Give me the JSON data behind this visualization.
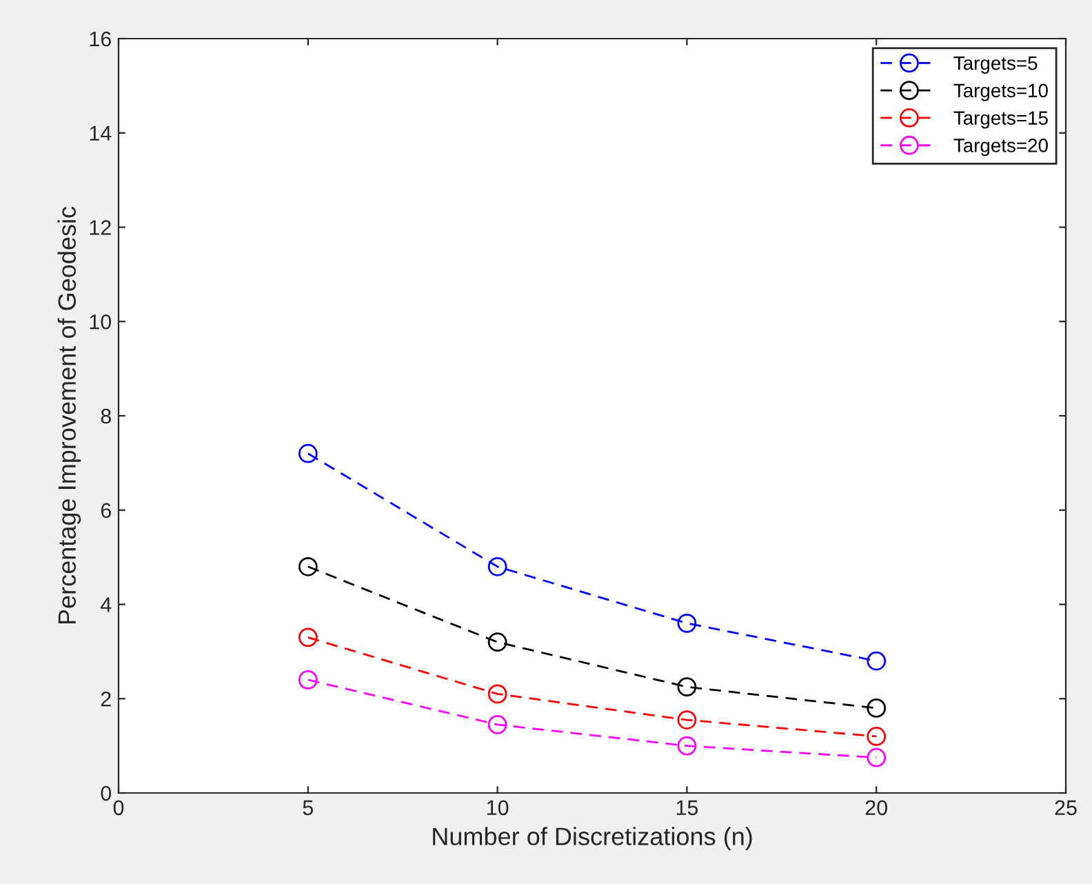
{
  "chart_data": {
    "type": "line",
    "xlabel": "Number of Discretizations (n)",
    "ylabel": "Percentage Improvement of Geodesic",
    "x": [
      5,
      10,
      15,
      20
    ],
    "series": [
      {
        "name": "Targets=5",
        "color": "#0000ff",
        "values": [
          7.2,
          4.8,
          3.6,
          2.8
        ]
      },
      {
        "name": "Targets=10",
        "color": "#000000",
        "values": [
          4.8,
          3.2,
          2.25,
          1.8
        ]
      },
      {
        "name": "Targets=15",
        "color": "#ff0000",
        "values": [
          3.3,
          2.1,
          1.55,
          1.2
        ]
      },
      {
        "name": "Targets=20",
        "color": "#ff00ff",
        "values": [
          2.4,
          1.45,
          1.0,
          0.75
        ]
      }
    ],
    "xlim": [
      0,
      25
    ],
    "xticks": [
      0,
      5,
      10,
      15,
      20,
      25
    ],
    "ylim": [
      0,
      16
    ],
    "yticks": [
      0,
      2,
      4,
      6,
      8,
      10,
      12,
      14,
      16
    ],
    "grid": false,
    "legend": "top right",
    "marker": "circle",
    "line_style": "dashed"
  }
}
